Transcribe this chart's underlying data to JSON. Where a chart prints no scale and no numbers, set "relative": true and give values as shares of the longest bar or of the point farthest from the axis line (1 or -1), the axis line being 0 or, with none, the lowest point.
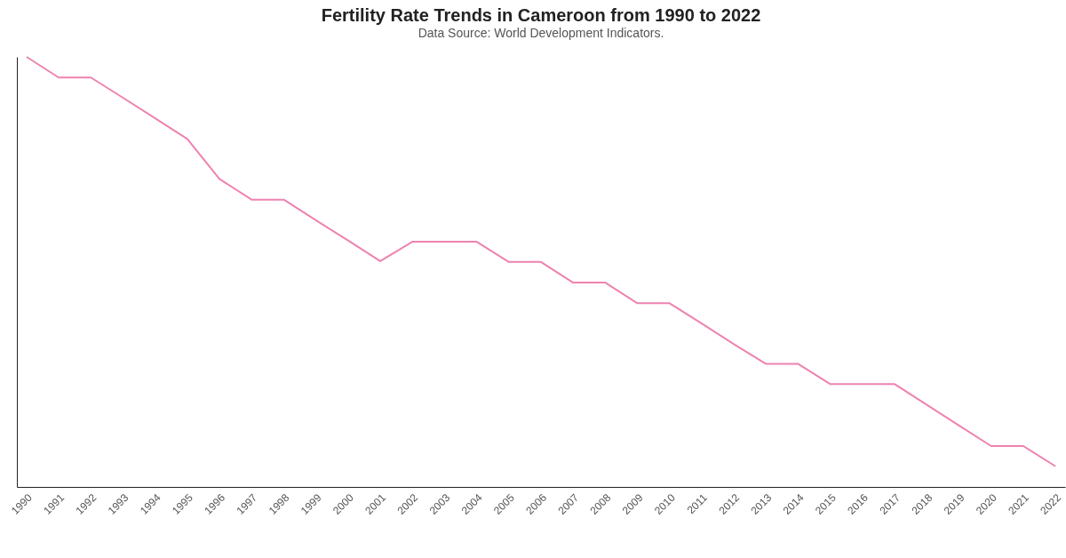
{
  "chart_data": {
    "type": "line",
    "title": "Fertility Rate Trends in Cameroon from 1990 to 2022",
    "subtitle": "Data Source: World Development Indicators.",
    "relative": true,
    "grid": false,
    "marker": "none",
    "line_style": "solid",
    "categories": [
      "1990",
      "1991",
      "1992",
      "1993",
      "1994",
      "1995",
      "1996",
      "1997",
      "1998",
      "1999",
      "2000",
      "2001",
      "2002",
      "2003",
      "2004",
      "2005",
      "2006",
      "2007",
      "2008",
      "2009",
      "2010",
      "2011",
      "2012",
      "2013",
      "2014",
      "2015",
      "2016",
      "2017",
      "2018",
      "2019",
      "2020",
      "2021",
      "2022"
    ],
    "series": [
      {
        "color": "#ee82b0",
        "values": [
          1,
          0.952,
          0.952,
          0.905,
          0.857,
          0.809,
          0.716,
          0.668,
          0.668,
          0.62,
          0.573,
          0.525,
          0.57,
          0.57,
          0.57,
          0.523,
          0.523,
          0.475,
          0.475,
          0.427,
          0.427,
          0.38,
          0.332,
          0.286,
          0.286,
          0.239,
          0.239,
          0.239,
          0.191,
          0.143,
          0.095,
          0.095,
          0.048
        ]
      }
    ]
  }
}
